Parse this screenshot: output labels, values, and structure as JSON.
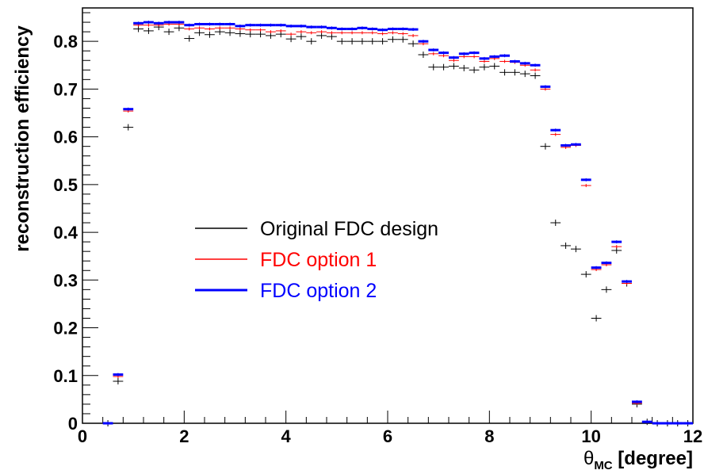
{
  "chart_data": {
    "type": "scatter",
    "xlabel_main": "θ",
    "xlabel_sub": "MC",
    "xlabel_unit": " [degree]",
    "ylabel": "reconstruction efficiency",
    "xlim": [
      0,
      12
    ],
    "ylim": [
      0,
      0.87
    ],
    "xticks": [
      0,
      2,
      4,
      6,
      8,
      10,
      12
    ],
    "yticks": [
      0,
      0.1,
      0.2,
      0.3,
      0.4,
      0.5,
      0.6,
      0.7,
      0.8
    ],
    "bin_width": 0.2,
    "grid": false,
    "legend_position": "center-left",
    "x": [
      0.5,
      0.7,
      0.9,
      1.1,
      1.3,
      1.5,
      1.7,
      1.9,
      2.1,
      2.3,
      2.5,
      2.7,
      2.9,
      3.1,
      3.3,
      3.5,
      3.7,
      3.9,
      4.1,
      4.3,
      4.5,
      4.7,
      4.9,
      5.1,
      5.3,
      5.5,
      5.7,
      5.9,
      6.1,
      6.3,
      6.5,
      6.7,
      6.9,
      7.1,
      7.3,
      7.5,
      7.7,
      7.9,
      8.1,
      8.3,
      8.5,
      8.7,
      8.9,
      9.1,
      9.3,
      9.5,
      9.7,
      9.9,
      10.1,
      10.3,
      10.5,
      10.7,
      10.9,
      11.1,
      11.3,
      11.5,
      11.7,
      11.9
    ],
    "series": [
      {
        "name": "Original FDC design",
        "color": "#000000",
        "values": [
          0.0,
          0.088,
          0.62,
          0.826,
          0.822,
          0.83,
          0.82,
          0.828,
          0.806,
          0.818,
          0.814,
          0.82,
          0.818,
          0.816,
          0.815,
          0.815,
          0.812,
          0.815,
          0.805,
          0.81,
          0.8,
          0.812,
          0.81,
          0.8,
          0.8,
          0.8,
          0.8,
          0.8,
          0.804,
          0.804,
          0.795,
          0.772,
          0.746,
          0.746,
          0.748,
          0.744,
          0.74,
          0.746,
          0.748,
          0.735,
          0.735,
          0.732,
          0.728,
          0.58,
          0.42,
          0.372,
          0.365,
          0.312,
          0.22,
          0.28,
          0.362,
          0.293,
          0.04,
          0.003,
          0.0,
          0.0,
          0.0,
          0.0
        ]
      },
      {
        "name": "FDC option 1",
        "color": "#ff0000",
        "values": [
          0.0,
          0.098,
          0.654,
          0.834,
          0.834,
          0.834,
          0.836,
          0.836,
          0.826,
          0.828,
          0.826,
          0.828,
          0.828,
          0.826,
          0.824,
          0.824,
          0.82,
          0.822,
          0.815,
          0.82,
          0.818,
          0.82,
          0.818,
          0.818,
          0.818,
          0.818,
          0.818,
          0.816,
          0.818,
          0.816,
          0.812,
          0.795,
          0.774,
          0.77,
          0.76,
          0.768,
          0.768,
          0.758,
          0.764,
          0.758,
          0.756,
          0.75,
          0.74,
          0.7,
          0.605,
          0.578,
          0.582,
          0.498,
          0.322,
          0.332,
          0.37,
          0.293,
          0.042,
          0.003,
          0.0,
          0.0,
          0.0,
          0.0
        ]
      },
      {
        "name": "FDC option 2",
        "color": "#0000ff",
        "values": [
          0.0,
          0.102,
          0.658,
          0.838,
          0.84,
          0.838,
          0.84,
          0.84,
          0.834,
          0.836,
          0.836,
          0.836,
          0.836,
          0.832,
          0.834,
          0.834,
          0.834,
          0.834,
          0.832,
          0.832,
          0.83,
          0.83,
          0.828,
          0.826,
          0.826,
          0.828,
          0.826,
          0.824,
          0.826,
          0.826,
          0.825,
          0.8,
          0.782,
          0.776,
          0.766,
          0.774,
          0.776,
          0.764,
          0.768,
          0.77,
          0.758,
          0.754,
          0.75,
          0.705,
          0.614,
          0.582,
          0.584,
          0.51,
          0.326,
          0.336,
          0.38,
          0.297,
          0.045,
          0.003,
          0.0,
          0.0,
          0.0,
          0.0
        ]
      }
    ]
  }
}
